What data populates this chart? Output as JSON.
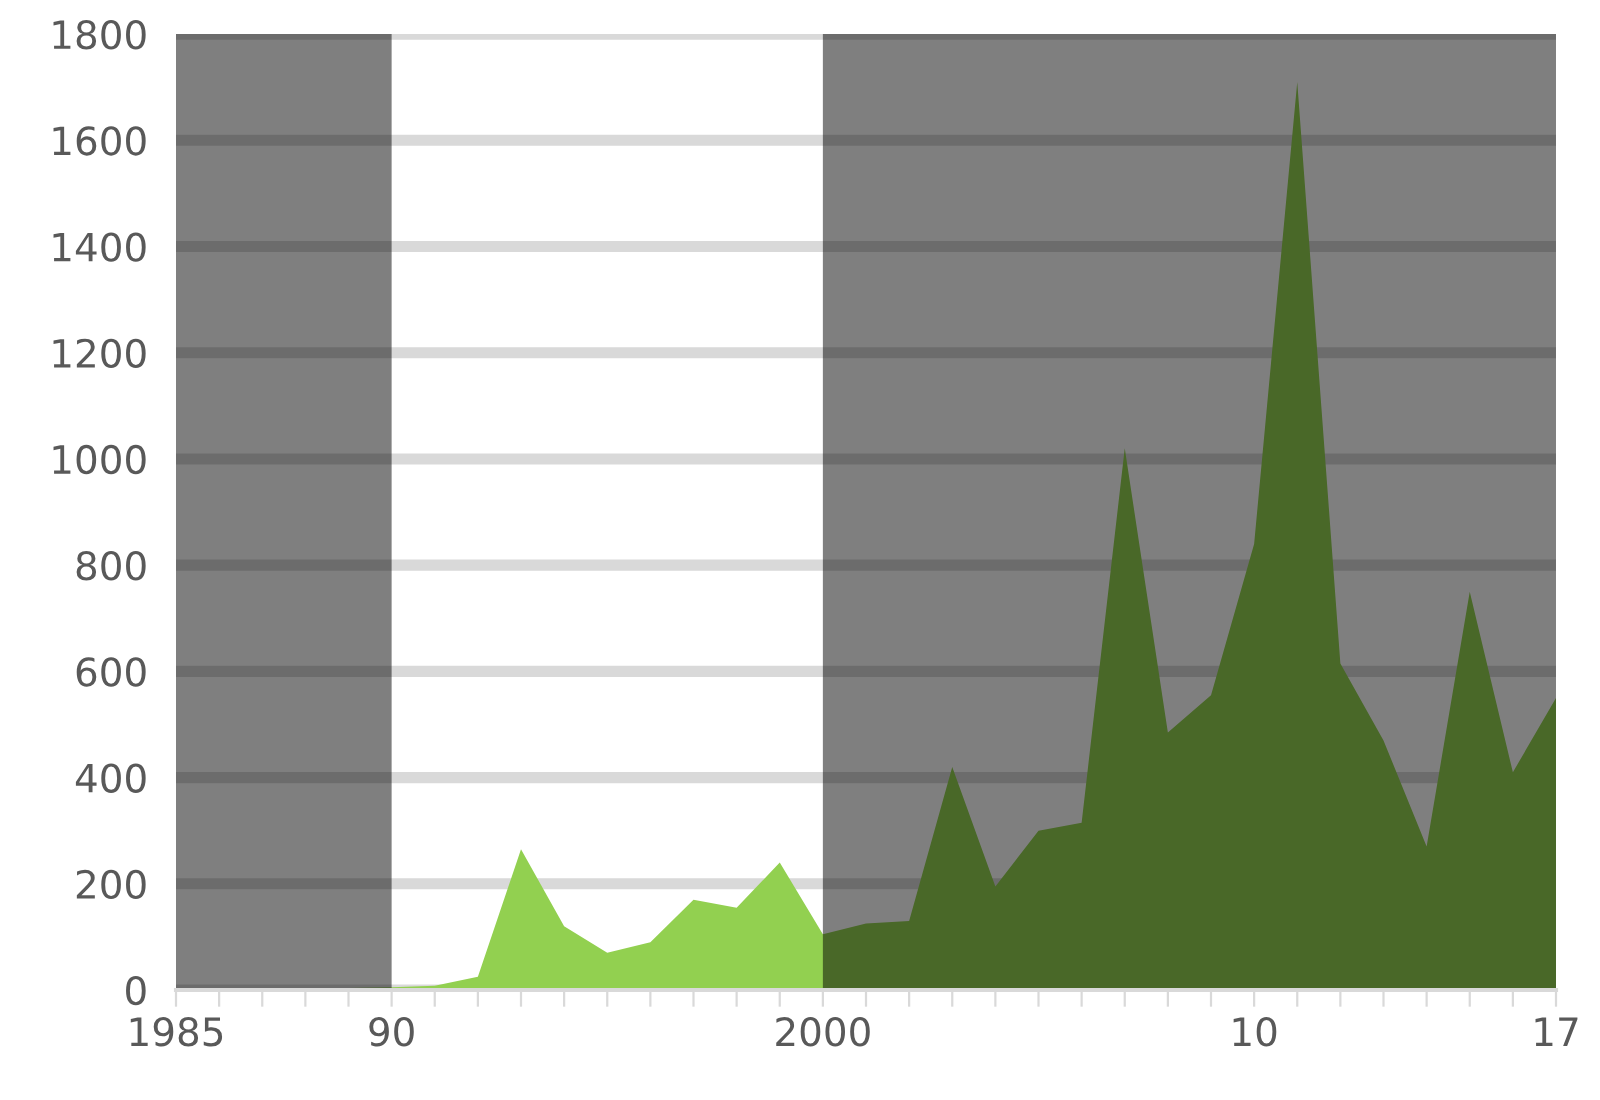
{
  "chart_data": {
    "type": "area",
    "x": [
      1985,
      1986,
      1987,
      1988,
      1989,
      1990,
      1991,
      1992,
      1993,
      1994,
      1995,
      1996,
      1997,
      1998,
      1999,
      2000,
      2001,
      2002,
      2003,
      2004,
      2005,
      2006,
      2007,
      2008,
      2009,
      2010,
      2011,
      2012,
      2013,
      2014,
      2015,
      2016,
      2017
    ],
    "series": [
      {
        "color": "#92d050",
        "values": [
          0,
          0,
          0,
          2,
          4,
          5,
          8,
          25,
          265,
          120,
          70,
          90,
          170,
          155,
          240,
          105,
          125,
          130,
          420,
          195,
          300,
          315,
          1020,
          485,
          555,
          840,
          1710,
          615,
          470,
          270,
          750,
          410,
          550
        ]
      }
    ],
    "xlim": [
      1985,
      2017
    ],
    "xticks": [
      {
        "value": 1985,
        "label": "1985"
      },
      {
        "value": 1986,
        "label": null
      },
      {
        "value": 1987,
        "label": null
      },
      {
        "value": 1988,
        "label": null
      },
      {
        "value": 1989,
        "label": null
      },
      {
        "value": 1990,
        "label": "90"
      },
      {
        "value": 1991,
        "label": null
      },
      {
        "value": 1992,
        "label": null
      },
      {
        "value": 1993,
        "label": null
      },
      {
        "value": 1994,
        "label": null
      },
      {
        "value": 1995,
        "label": null
      },
      {
        "value": 1996,
        "label": null
      },
      {
        "value": 1997,
        "label": null
      },
      {
        "value": 1998,
        "label": null
      },
      {
        "value": 1999,
        "label": null
      },
      {
        "value": 2000,
        "label": "2000"
      },
      {
        "value": 2001,
        "label": null
      },
      {
        "value": 2002,
        "label": null
      },
      {
        "value": 2003,
        "label": null
      },
      {
        "value": 2004,
        "label": null
      },
      {
        "value": 2005,
        "label": null
      },
      {
        "value": 2006,
        "label": null
      },
      {
        "value": 2007,
        "label": null
      },
      {
        "value": 2008,
        "label": null
      },
      {
        "value": 2009,
        "label": null
      },
      {
        "value": 2010,
        "label": "10"
      },
      {
        "value": 2011,
        "label": null
      },
      {
        "value": 2012,
        "label": null
      },
      {
        "value": 2013,
        "label": null
      },
      {
        "value": 2014,
        "label": null
      },
      {
        "value": 2015,
        "label": null
      },
      {
        "value": 2016,
        "label": null
      },
      {
        "value": 2017,
        "label": "17"
      }
    ],
    "ylim": [
      0,
      1800
    ],
    "yticks": [
      0,
      200,
      400,
      600,
      800,
      1000,
      1200,
      1400,
      1600,
      1800
    ],
    "grid": "y",
    "bands": [
      {
        "axis": "x",
        "from": 1985,
        "to": 1990,
        "color": "#000000"
      },
      {
        "axis": "x",
        "from": 2000,
        "to": 2017,
        "color": "#000000"
      }
    ]
  }
}
